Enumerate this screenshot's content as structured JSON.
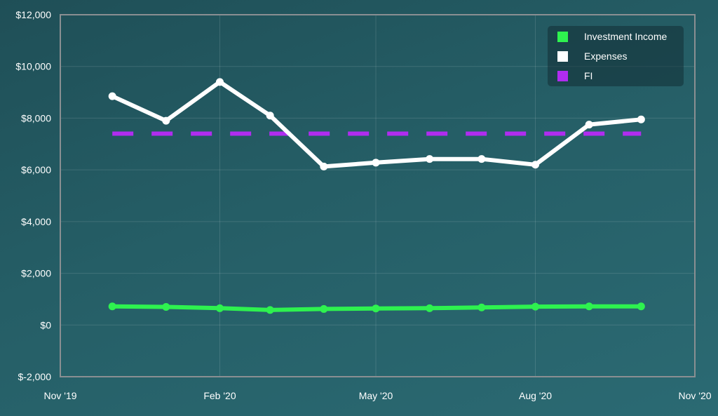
{
  "chart_data": {
    "type": "line",
    "y_ticks": [
      "$12,000",
      "$10,000",
      "$8,000",
      "$6,000",
      "$4,000",
      "$2,000",
      "$0",
      "$-2,000"
    ],
    "y_tick_values": [
      12000,
      10000,
      8000,
      6000,
      4000,
      2000,
      0,
      -2000
    ],
    "x_ticks": [
      "Nov '19",
      "Feb '20",
      "May '20",
      "Aug '20",
      "Nov '20"
    ],
    "x_tick_values": [
      "2019-11-01",
      "2020-02-01",
      "2020-05-01",
      "2020-08-01",
      "2020-11-01"
    ],
    "ylim": [
      -2000,
      12000
    ],
    "xlim": [
      "2019-11-01",
      "2020-11-01"
    ],
    "grid": true,
    "legend_position": "top-right",
    "x": [
      "2019-12-01",
      "2020-01-01",
      "2020-02-01",
      "2020-03-01",
      "2020-04-01",
      "2020-05-01",
      "2020-06-01",
      "2020-07-01",
      "2020-08-01",
      "2020-09-01",
      "2020-10-01"
    ],
    "series": [
      {
        "name": "Investment Income",
        "color": "#2ef24f",
        "style": "solid",
        "values": [
          720,
          700,
          650,
          580,
          620,
          640,
          650,
          680,
          710,
          720,
          720
        ]
      },
      {
        "name": "Expenses",
        "color": "#ffffff",
        "style": "solid",
        "values": [
          8850,
          7900,
          9400,
          8100,
          6130,
          6280,
          6420,
          6420,
          6200,
          7750,
          7950
        ]
      },
      {
        "name": "FI",
        "color": "#b02cf0",
        "style": "dashed",
        "values": [
          7400,
          7400,
          7400,
          7400,
          7400,
          7400,
          7400,
          7400,
          7400,
          7400,
          7400
        ]
      }
    ]
  }
}
